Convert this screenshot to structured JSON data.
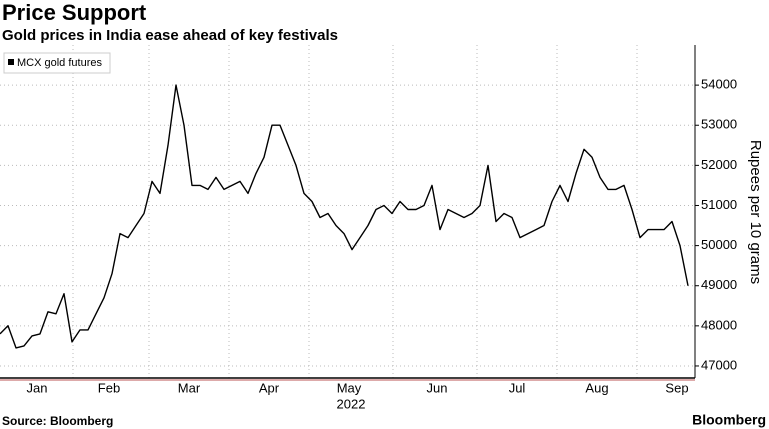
{
  "chart_data": {
    "type": "line",
    "title": "Price Support",
    "subtitle": "Gold prices in India ease ahead of key festivals",
    "y_label": "Rupees per 10 grams",
    "x_label": "2022",
    "source": "Source: Bloomberg",
    "brand": "Bloomberg",
    "legend_position": "upper left",
    "categories": [
      null,
      null,
      null,
      null,
      null,
      "Jan",
      null,
      null,
      null,
      null,
      null,
      null,
      null,
      null,
      "Feb",
      null,
      null,
      null,
      null,
      null,
      null,
      null,
      null,
      null,
      "Mar",
      null,
      null,
      null,
      null,
      null,
      null,
      null,
      null,
      null,
      "Apr",
      null,
      null,
      null,
      null,
      null,
      null,
      null,
      null,
      null,
      "May",
      null,
      null,
      null,
      null,
      null,
      null,
      null,
      null,
      null,
      null,
      "Jun",
      null,
      null,
      null,
      null,
      null,
      null,
      null,
      null,
      null,
      "Jul",
      null,
      null,
      null,
      null,
      null,
      null,
      null,
      null,
      null,
      "Aug",
      null,
      null,
      null,
      null,
      null,
      null,
      null,
      null,
      null,
      "Sep",
      null
    ],
    "series": [
      {
        "name": "MCX gold futures",
        "color": "#000000",
        "values": [
          47800,
          48000,
          47450,
          47500,
          47750,
          47800,
          48350,
          48300,
          48800,
          47600,
          47900,
          47900,
          48300,
          48700,
          49300,
          50300,
          50200,
          50500,
          50800,
          51600,
          51300,
          52500,
          54000,
          53000,
          51500,
          51500,
          51400,
          51700,
          51400,
          51500,
          51600,
          51300,
          51800,
          52200,
          53000,
          53000,
          52500,
          52000,
          51300,
          51100,
          50700,
          50800,
          50500,
          50300,
          49900,
          50200,
          50500,
          50900,
          51000,
          50800,
          51100,
          50900,
          50900,
          51000,
          51500,
          50400,
          50900,
          50800,
          50700,
          50800,
          51000,
          52000,
          50600,
          50800,
          50700,
          50200,
          50300,
          50400,
          50500,
          51100,
          51500,
          51100,
          51800,
          52400,
          52200,
          51700,
          51400,
          51400,
          51500,
          50900,
          50200,
          50400,
          50400,
          50400,
          50600,
          50000,
          49000
        ]
      }
    ],
    "ylim": [
      46700,
      55000
    ],
    "yticks": [
      47000,
      48000,
      49000,
      50000,
      51000,
      52000,
      53000,
      54000
    ],
    "grid": true
  }
}
